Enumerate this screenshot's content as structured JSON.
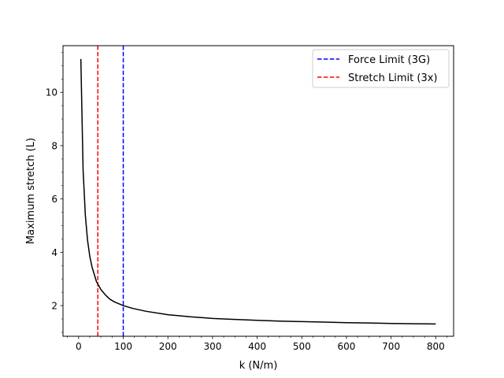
{
  "chart_data": {
    "type": "line",
    "title": "",
    "xlabel": "k (N/m)",
    "ylabel": "Maximum stretch (L)",
    "xlim": [
      -35,
      840
    ],
    "ylim": [
      0.85,
      11.75
    ],
    "x_ticks": [
      0,
      100,
      200,
      300,
      400,
      500,
      600,
      700,
      800
    ],
    "y_ticks": [
      2,
      4,
      6,
      8,
      10
    ],
    "x_minor_step": 25,
    "y_minor_step": 0.5,
    "grid": false,
    "legend_position": "upper right",
    "series": [
      {
        "color": "#000000",
        "style": "solid",
        "x": [
          5,
          10,
          15,
          20,
          25,
          30,
          40,
          50,
          60,
          70,
          80,
          100,
          120,
          150,
          200,
          250,
          300,
          350,
          400,
          450,
          500,
          550,
          600,
          650,
          700,
          750,
          800
        ],
        "y": [
          11.25,
          7.1,
          5.4,
          4.45,
          3.85,
          3.45,
          2.9,
          2.6,
          2.4,
          2.24,
          2.14,
          2.0,
          1.9,
          1.79,
          1.66,
          1.58,
          1.52,
          1.48,
          1.45,
          1.42,
          1.4,
          1.38,
          1.36,
          1.35,
          1.33,
          1.32,
          1.31
        ]
      }
    ],
    "reference_lines": [
      {
        "name": "Force Limit (3G)",
        "axis": "x",
        "value": 100,
        "color": "#0000ff",
        "style": "dashed"
      },
      {
        "name": "Stretch Limit (3x)",
        "axis": "x",
        "value": 43,
        "color": "#ff0000",
        "style": "dashed"
      }
    ]
  }
}
